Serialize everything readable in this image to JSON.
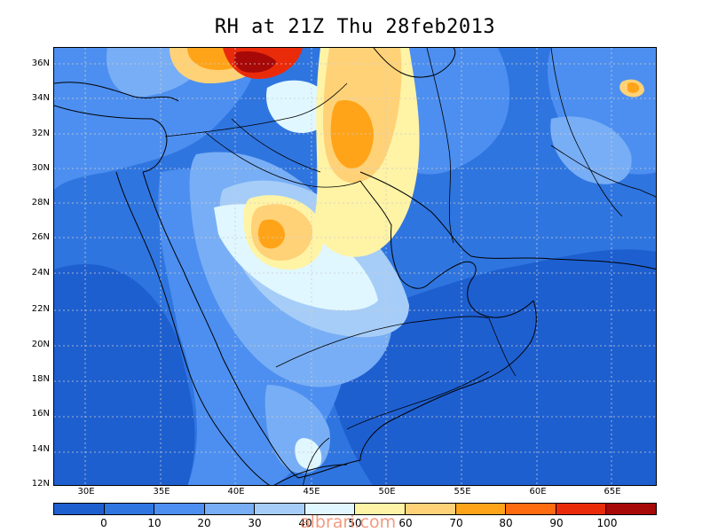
{
  "title": "RH at 21Z Thu 28feb2013",
  "lat_ticks": [
    "36N",
    "34N",
    "32N",
    "30N",
    "28N",
    "26N",
    "24N",
    "22N",
    "20N",
    "18N",
    "16N",
    "14N",
    "12N"
  ],
  "lon_ticks": [
    "30E",
    "35E",
    "40E",
    "45E",
    "50E",
    "55E",
    "60E",
    "65E"
  ],
  "colorbar": {
    "colors": [
      "#1e5fd0",
      "#2f75e0",
      "#4d8ff0",
      "#78aef5",
      "#a6cdf8",
      "#e0f7ff",
      "#fff3a6",
      "#ffd278",
      "#ffa419",
      "#ff6b0f",
      "#ea2b0a",
      "#a70808"
    ],
    "labels": [
      "0",
      "10",
      "20",
      "30",
      "40",
      "50",
      "60",
      "70",
      "80",
      "90",
      "100"
    ]
  },
  "colors": {
    "base": "#2f75e0",
    "coastline": "#000000",
    "gridline": "#aaaaaa"
  },
  "watermark": "albrari.com"
}
